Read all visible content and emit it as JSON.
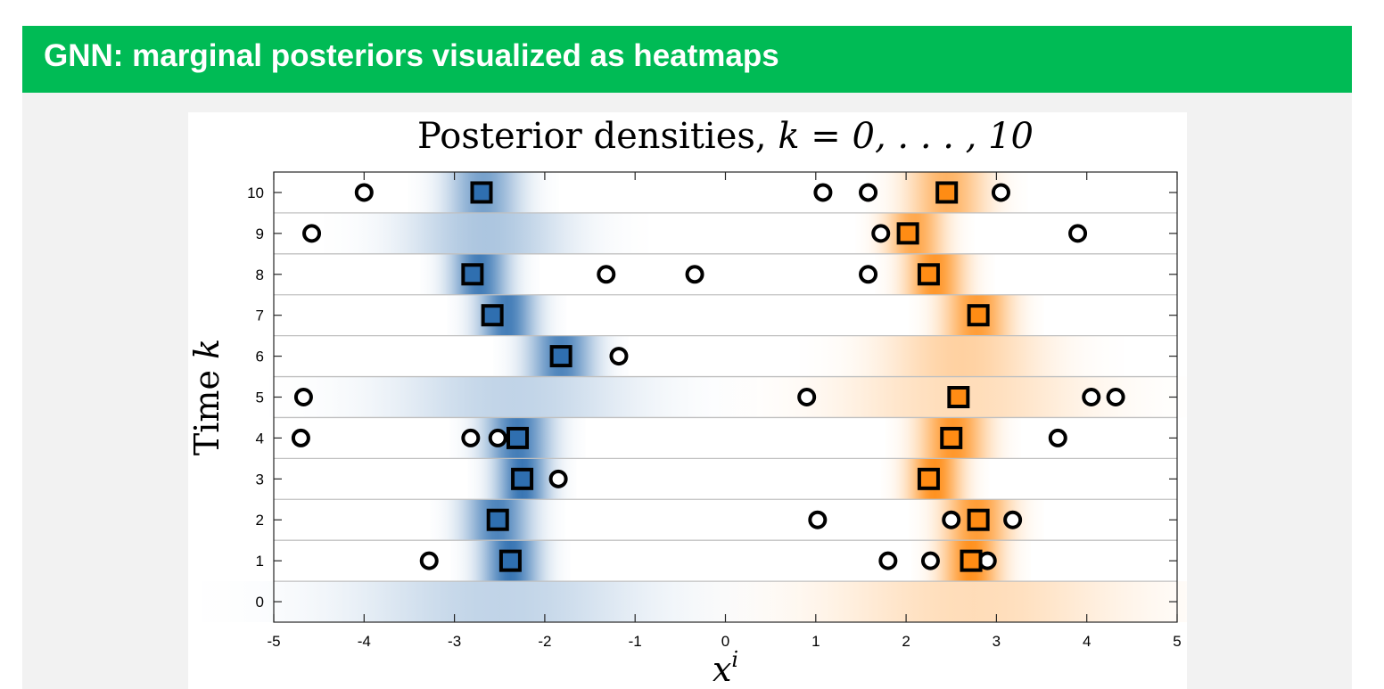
{
  "slide": {
    "title": "GNN: marginal posteriors visualized as heatmaps",
    "colors": {
      "title_bar": "#00bb55",
      "background": "#f2f2f2",
      "title_text": "#ffffff"
    }
  },
  "chart_data": {
    "type": "heatmap",
    "title_prefix": "Posterior densities, ",
    "title_math": "k = 0, . . . , 10",
    "xlabel": "x",
    "xlabel_superscript": "i",
    "ylabel_prefix": "Time ",
    "ylabel_math": "k",
    "xlim": [
      -5,
      5
    ],
    "ylim": [
      -0.5,
      10.5
    ],
    "xticks": [
      "-5",
      "-4",
      "-3",
      "-2",
      "-1",
      "0",
      "1",
      "2",
      "3",
      "4",
      "5"
    ],
    "yticks": [
      "0",
      "1",
      "2",
      "3",
      "4",
      "5",
      "6",
      "7",
      "8",
      "9",
      "10"
    ],
    "grid": "horizontal row separators",
    "series": [
      {
        "color": "#2f6fb0",
        "marker": "square",
        "densities": [
          {
            "k": 0,
            "mean": -2.5,
            "std": 1.1,
            "intensity": 0.3
          },
          {
            "k": 1,
            "mean": -2.38,
            "std": 0.22,
            "intensity": 0.95
          },
          {
            "k": 2,
            "mean": -2.52,
            "std": 0.25,
            "intensity": 0.85
          },
          {
            "k": 3,
            "mean": -2.25,
            "std": 0.2,
            "intensity": 0.95
          },
          {
            "k": 4,
            "mean": -2.3,
            "std": 0.25,
            "intensity": 0.9
          },
          {
            "k": 5,
            "mean": -2.35,
            "std": 0.9,
            "intensity": 0.3
          },
          {
            "k": 6,
            "mean": -1.82,
            "std": 0.25,
            "intensity": 0.85
          },
          {
            "k": 7,
            "mean": -2.42,
            "std": 0.22,
            "intensity": 0.9
          },
          {
            "k": 8,
            "mean": -2.72,
            "std": 0.22,
            "intensity": 0.9
          },
          {
            "k": 9,
            "mean": -2.65,
            "std": 0.6,
            "intensity": 0.4
          },
          {
            "k": 10,
            "mean": -2.68,
            "std": 0.28,
            "intensity": 0.65
          }
        ],
        "estimates": [
          {
            "k": 1,
            "x": -2.38
          },
          {
            "k": 2,
            "x": -2.52
          },
          {
            "k": 3,
            "x": -2.25
          },
          {
            "k": 4,
            "x": -2.3
          },
          {
            "k": 6,
            "x": -1.82
          },
          {
            "k": 7,
            "x": -2.58
          },
          {
            "k": 8,
            "x": -2.8
          },
          {
            "k": 10,
            "x": -2.7
          }
        ]
      },
      {
        "color": "#ff8c14",
        "marker": "square",
        "densities": [
          {
            "k": 0,
            "mean": 2.75,
            "std": 1.1,
            "intensity": 0.3
          },
          {
            "k": 1,
            "mean": 2.72,
            "std": 0.22,
            "intensity": 0.95
          },
          {
            "k": 2,
            "mean": 2.78,
            "std": 0.25,
            "intensity": 0.85
          },
          {
            "k": 3,
            "mean": 2.32,
            "std": 0.2,
            "intensity": 0.95
          },
          {
            "k": 4,
            "mean": 2.52,
            "std": 0.25,
            "intensity": 0.9
          },
          {
            "k": 5,
            "mean": 2.62,
            "std": 0.9,
            "intensity": 0.3
          },
          {
            "k": 6,
            "mean": 2.62,
            "std": 0.6,
            "intensity": 0.4
          },
          {
            "k": 7,
            "mean": 2.78,
            "std": 0.25,
            "intensity": 0.85
          },
          {
            "k": 8,
            "mean": 2.32,
            "std": 0.22,
            "intensity": 0.9
          },
          {
            "k": 9,
            "mean": 2.1,
            "std": 0.22,
            "intensity": 0.75
          },
          {
            "k": 10,
            "mean": 2.45,
            "std": 0.3,
            "intensity": 0.65
          }
        ],
        "estimates": [
          {
            "k": 1,
            "x": 2.72
          },
          {
            "k": 2,
            "x": 2.8
          },
          {
            "k": 3,
            "x": 2.25
          },
          {
            "k": 4,
            "x": 2.5
          },
          {
            "k": 5,
            "x": 2.58
          },
          {
            "k": 7,
            "x": 2.8
          },
          {
            "k": 8,
            "x": 2.25
          },
          {
            "k": 9,
            "x": 2.02
          },
          {
            "k": 10,
            "x": 2.45
          }
        ]
      }
    ],
    "measurements": [
      {
        "k": 1,
        "x": -3.28
      },
      {
        "k": 1,
        "x": 1.8
      },
      {
        "k": 1,
        "x": 2.27
      },
      {
        "k": 1,
        "x": 2.9
      },
      {
        "k": 2,
        "x": 1.02
      },
      {
        "k": 2,
        "x": 2.5
      },
      {
        "k": 2,
        "x": 3.18
      },
      {
        "k": 3,
        "x": -1.85
      },
      {
        "k": 4,
        "x": -4.7
      },
      {
        "k": 4,
        "x": -2.82
      },
      {
        "k": 4,
        "x": -2.52
      },
      {
        "k": 4,
        "x": 3.68
      },
      {
        "k": 5,
        "x": -4.67
      },
      {
        "k": 5,
        "x": 0.9
      },
      {
        "k": 5,
        "x": 4.05
      },
      {
        "k": 5,
        "x": 4.32
      },
      {
        "k": 6,
        "x": -1.18
      },
      {
        "k": 8,
        "x": -1.32
      },
      {
        "k": 8,
        "x": -0.34
      },
      {
        "k": 8,
        "x": 1.58
      },
      {
        "k": 9,
        "x": -4.58
      },
      {
        "k": 9,
        "x": 1.72
      },
      {
        "k": 9,
        "x": 3.9
      },
      {
        "k": 10,
        "x": -4.0
      },
      {
        "k": 10,
        "x": 1.08
      },
      {
        "k": 10,
        "x": 1.58
      },
      {
        "k": 10,
        "x": 3.05
      }
    ]
  }
}
